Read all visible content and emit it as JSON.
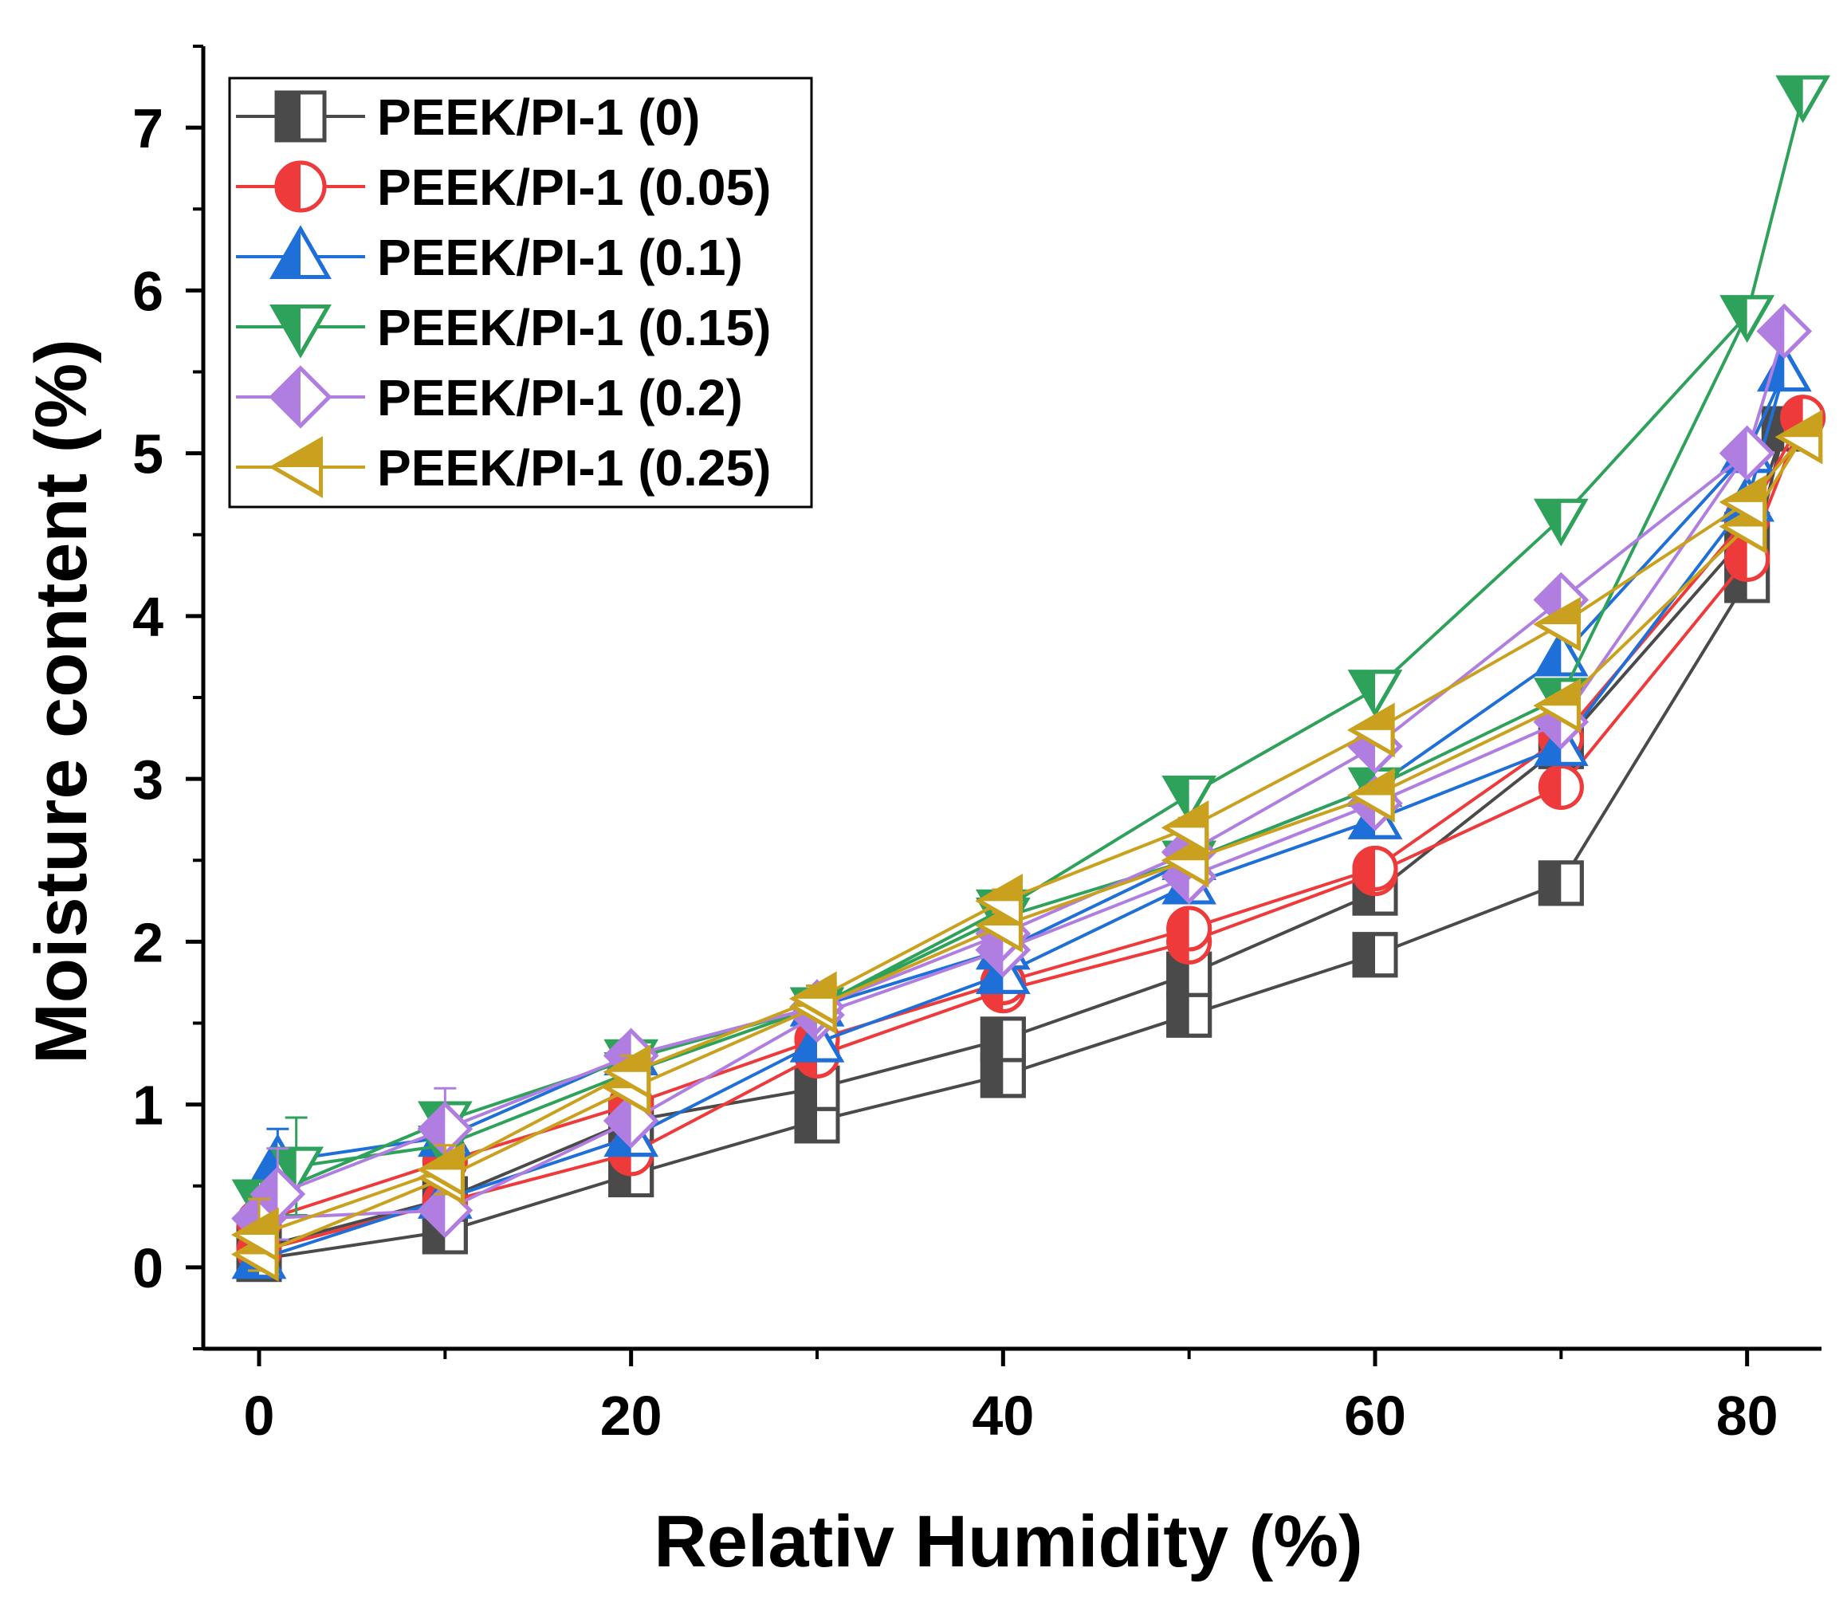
{
  "chart_data": {
    "type": "line",
    "title": "",
    "xlabel": "Relativ Humidity (%)",
    "ylabel": "Moisture content (%)",
    "xlim": [
      -3,
      84
    ],
    "ylim": [
      -0.5,
      7.5
    ],
    "x_ticks": [
      0,
      20,
      40,
      60,
      80
    ],
    "x_minor_ticks": [
      10,
      30,
      50,
      70
    ],
    "y_ticks": [
      0,
      1,
      2,
      3,
      4,
      5,
      6,
      7
    ],
    "grid": false,
    "legend_position": "top-left",
    "series": [
      {
        "name": "PEEK/PI-1 (0)",
        "color": "#4a4a4a",
        "marker": "square-half",
        "absorption": {
          "x": [
            0,
            10,
            20,
            30,
            40,
            50,
            60,
            70,
            80
          ],
          "y": [
            0.05,
            0.22,
            0.57,
            0.9,
            1.18,
            1.55,
            1.92,
            2.36,
            4.22
          ]
        },
        "desorption": {
          "x": [
            82,
            80,
            70,
            60,
            50,
            40,
            30,
            20,
            10,
            0
          ],
          "y": [
            5.15,
            4.5,
            3.2,
            2.3,
            1.8,
            1.4,
            1.1,
            0.9,
            0.42,
            0.12
          ]
        },
        "error_bars": [
          0.02,
          0.03,
          0.03,
          0.04,
          0.05,
          0.05,
          0.06,
          0.06,
          0.15,
          0.1
        ]
      },
      {
        "name": "PEEK/PI-1 (0.05)",
        "color": "#ee3a3a",
        "marker": "circle-half",
        "absorption": {
          "x": [
            0,
            10,
            20,
            30,
            40,
            50,
            60,
            70,
            80
          ],
          "y": [
            0.1,
            0.4,
            0.7,
            1.3,
            1.7,
            2.0,
            2.42,
            2.95,
            4.35
          ]
        },
        "desorption": {
          "x": [
            83,
            80,
            70,
            60,
            50,
            40,
            30,
            20,
            10,
            0
          ],
          "y": [
            5.22,
            4.6,
            3.25,
            2.45,
            2.08,
            1.75,
            1.4,
            1.0,
            0.65,
            0.28
          ]
        },
        "error_bars": [
          0.02,
          0.03,
          0.04,
          0.04,
          0.05,
          0.05,
          0.06,
          0.07,
          0.15,
          0.12
        ]
      },
      {
        "name": "PEEK/PI-1 (0.1)",
        "color": "#1f6fd8",
        "marker": "triangle-up-half",
        "absorption": {
          "x": [
            0,
            10,
            20,
            30,
            40,
            50,
            60,
            70,
            80
          ],
          "y": [
            0.05,
            0.42,
            0.8,
            1.38,
            1.8,
            2.35,
            2.75,
            3.2,
            4.7
          ]
        },
        "desorption": {
          "x": [
            82,
            80,
            70,
            60,
            50,
            40,
            30,
            20,
            10,
            1
          ],
          "y": [
            5.5,
            5.0,
            3.75,
            2.95,
            2.5,
            1.95,
            1.6,
            1.3,
            0.8,
            0.65
          ]
        },
        "error_bars": [
          0.02,
          0.03,
          0.04,
          0.04,
          0.05,
          0.05,
          0.06,
          0.07,
          0.15,
          0.2
        ]
      },
      {
        "name": "PEEK/PI-1 (0.15)",
        "color": "#2ea15a",
        "marker": "triangle-down-half",
        "absorption": {
          "x": [
            0,
            10,
            20,
            30,
            40,
            50,
            60,
            70,
            80
          ],
          "y": [
            0.42,
            0.9,
            1.28,
            1.6,
            2.2,
            2.9,
            3.55,
            4.6,
            5.85
          ]
        },
        "desorption": {
          "x": [
            83,
            80,
            70,
            60,
            50,
            40,
            30,
            20,
            10,
            2
          ],
          "y": [
            7.2,
            5.85,
            3.5,
            2.95,
            2.5,
            2.15,
            1.6,
            1.2,
            0.75,
            0.62
          ]
        },
        "error_bars": [
          0.02,
          0.03,
          0.04,
          0.05,
          0.06,
          0.07,
          0.08,
          0.1,
          0.25,
          0.3
        ]
      },
      {
        "name": "PEEK/PI-1 (0.2)",
        "color": "#b07ee0",
        "marker": "diamond-half",
        "absorption": {
          "x": [
            0,
            10,
            20,
            30,
            40,
            50,
            60,
            70,
            80
          ],
          "y": [
            0.3,
            0.35,
            0.9,
            1.55,
            1.95,
            2.4,
            2.85,
            3.35,
            5.0
          ]
        },
        "desorption": {
          "x": [
            82,
            80,
            70,
            60,
            50,
            40,
            30,
            20,
            10,
            1
          ],
          "y": [
            5.75,
            5.0,
            4.1,
            3.2,
            2.55,
            2.05,
            1.6,
            1.3,
            0.85,
            0.45
          ]
        },
        "error_bars": [
          0.02,
          0.03,
          0.04,
          0.05,
          0.06,
          0.07,
          0.08,
          0.1,
          0.25,
          0.28
        ]
      },
      {
        "name": "PEEK/PI-1 (0.25)",
        "color": "#c9a11e",
        "marker": "triangle-left-half",
        "absorption": {
          "x": [
            0,
            10,
            20,
            30,
            40,
            50,
            60,
            70,
            80
          ],
          "y": [
            0.08,
            0.55,
            1.1,
            1.6,
            2.1,
            2.5,
            2.9,
            3.45,
            4.55
          ]
        },
        "desorption": {
          "x": [
            83,
            80,
            70,
            60,
            50,
            40,
            30,
            20,
            10,
            0
          ],
          "y": [
            5.1,
            4.7,
            3.95,
            3.3,
            2.7,
            2.25,
            1.65,
            1.2,
            0.6,
            0.2
          ]
        },
        "error_bars": [
          0.02,
          0.03,
          0.04,
          0.05,
          0.06,
          0.07,
          0.08,
          0.1,
          0.15,
          0.22
        ]
      }
    ]
  }
}
